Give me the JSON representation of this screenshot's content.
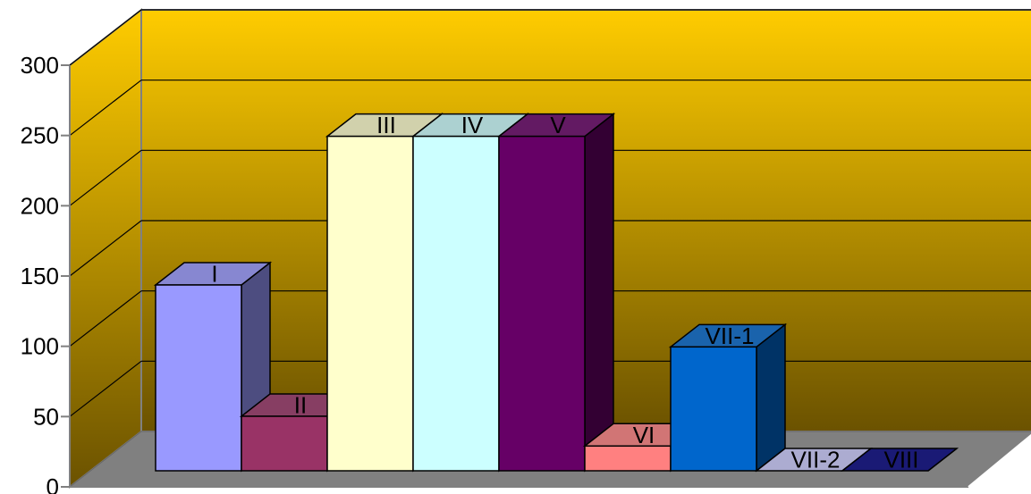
{
  "chart_data": {
    "type": "bar",
    "style": "3d-clustered-column",
    "categories": [
      "I",
      "II",
      "III",
      "IV",
      "V",
      "VI",
      "VII-1",
      "VII-2",
      "VIII"
    ],
    "values": [
      150,
      44,
      270,
      270,
      270,
      20,
      100,
      0,
      0
    ],
    "data_labels": [
      "I",
      "II",
      "III",
      "IV",
      "V",
      "VI",
      "VII-1",
      "VII-2",
      "VIII"
    ],
    "ylim": [
      0,
      300
    ],
    "yticks": [
      "0",
      "50",
      "100",
      "150",
      "200",
      "250",
      "300"
    ],
    "grid": true,
    "legend": "none",
    "title": "",
    "xlabel": "",
    "ylabel": "",
    "colors": {
      "back_wall_top": "#FFCC00",
      "back_wall_bottom": "#6B5200",
      "floor": "#808080",
      "bars": [
        "#9999FF",
        "#993366",
        "#FFFFCC",
        "#CCFFFF",
        "#660066",
        "#FF8080",
        "#0066CC",
        "#CCCCFF",
        "#000080"
      ]
    }
  }
}
